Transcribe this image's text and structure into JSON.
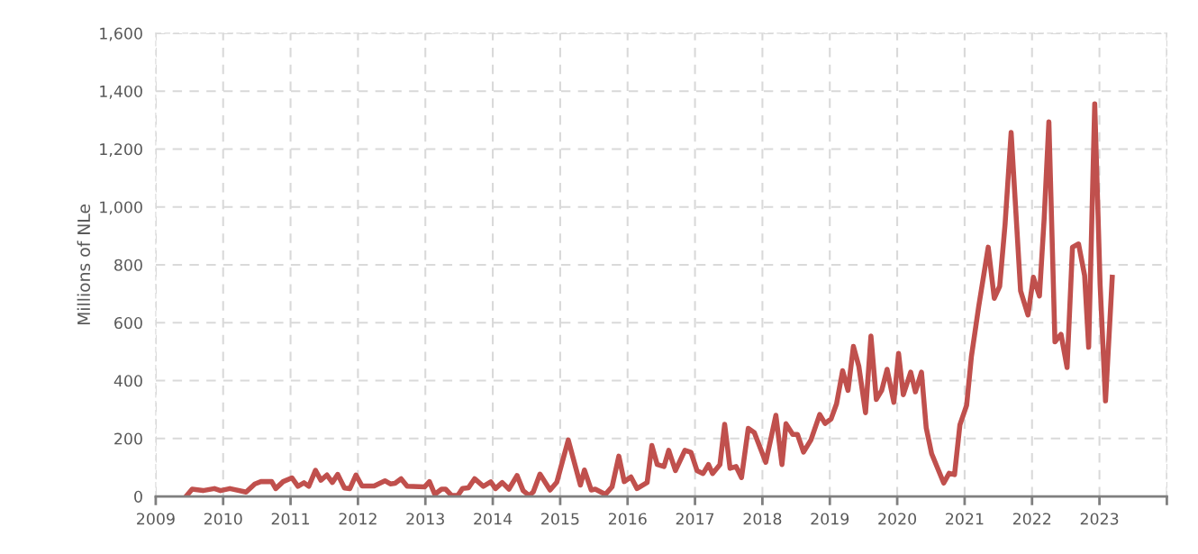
{
  "chart_data": {
    "type": "line",
    "ylabel": "Millions of NLe",
    "x": [
      2009.45,
      2009.54,
      2009.7,
      2009.87,
      2009.96,
      2010.1,
      2010.34,
      2010.47,
      2010.56,
      2010.72,
      2010.78,
      2010.89,
      2011.02,
      2011.11,
      2011.2,
      2011.27,
      2011.37,
      2011.45,
      2011.54,
      2011.62,
      2011.7,
      2011.8,
      2011.88,
      2011.97,
      2012.06,
      2012.24,
      2012.4,
      2012.48,
      2012.55,
      2012.64,
      2012.73,
      2012.99,
      2013.06,
      2013.14,
      2013.24,
      2013.3,
      2013.39,
      2013.48,
      2013.55,
      2013.64,
      2013.73,
      2013.86,
      2013.97,
      2014.04,
      2014.14,
      2014.24,
      2014.36,
      2014.45,
      2014.54,
      2014.6,
      2014.7,
      2014.85,
      2014.95,
      2015.12,
      2015.3,
      2015.36,
      2015.46,
      2015.52,
      2015.67,
      2015.77,
      2015.87,
      2015.95,
      2016.05,
      2016.14,
      2016.29,
      2016.36,
      2016.44,
      2016.54,
      2016.61,
      2016.71,
      2016.85,
      2016.94,
      2017.03,
      2017.12,
      2017.2,
      2017.26,
      2017.37,
      2017.44,
      2017.52,
      2017.61,
      2017.69,
      2017.79,
      2017.88,
      2018.05,
      2018.2,
      2018.29,
      2018.35,
      2018.45,
      2018.52,
      2018.61,
      2018.72,
      2018.85,
      2018.93,
      2019.02,
      2019.1,
      2019.19,
      2019.27,
      2019.35,
      2019.43,
      2019.53,
      2019.61,
      2019.69,
      2019.77,
      2019.85,
      2019.95,
      2020.02,
      2020.09,
      2020.2,
      2020.27,
      2020.36,
      2020.43,
      2020.51,
      2020.61,
      2020.69,
      2020.77,
      2020.85,
      2020.93,
      2021.03,
      2021.1,
      2021.21,
      2021.35,
      2021.44,
      2021.52,
      2021.6,
      2021.69,
      2021.83,
      2021.94,
      2022.02,
      2022.11,
      2022.18,
      2022.25,
      2022.34,
      2022.43,
      2022.52,
      2022.6,
      2022.69,
      2022.78,
      2022.84,
      2022.93,
      2023.01,
      2023.09,
      2023.19
    ],
    "series": [
      {
        "color": "#c0504d",
        "values": [
          0,
          25,
          20,
          27,
          20,
          27,
          15,
          43,
          51,
          51,
          27,
          51,
          64,
          35,
          47,
          35,
          90,
          56,
          74,
          48,
          76,
          29,
          27,
          74,
          36,
          36,
          54,
          43,
          45,
          61,
          35,
          33,
          51,
          7,
          25,
          25,
          3,
          3,
          27,
          30,
          61,
          35,
          50,
          27,
          48,
          25,
          72,
          20,
          3,
          15,
          77,
          22,
          49,
          195,
          39,
          91,
          22,
          25,
          7,
          33,
          139,
          51,
          67,
          27,
          48,
          176,
          110,
          103,
          159,
          89,
          159,
          152,
          89,
          79,
          110,
          79,
          110,
          249,
          97,
          103,
          65,
          235,
          220,
          118,
          280,
          110,
          251,
          214,
          214,
          153,
          195,
          283,
          252,
          268,
          320,
          434,
          366,
          518,
          450,
          289,
          554,
          335,
          366,
          439,
          325,
          494,
          351,
          429,
          361,
          429,
          237,
          148,
          91,
          46,
          80,
          75,
          247,
          315,
          482,
          658,
          861,
          684,
          726,
          940,
          1257,
          710,
          627,
          757,
          692,
          960,
          1294,
          534,
          560,
          445,
          861,
          872,
          763,
          515,
          1356,
          731,
          330,
          757
        ]
      }
    ],
    "xlim": [
      2009,
      2024
    ],
    "xticks": [
      2009,
      2010,
      2011,
      2012,
      2013,
      2014,
      2015,
      2016,
      2017,
      2018,
      2019,
      2020,
      2021,
      2022,
      2023,
      {
        "value": 2024,
        "label": null
      }
    ],
    "ylim": [
      0,
      1600
    ],
    "yticks": [
      0,
      {
        "value": 200,
        "label": "200"
      },
      {
        "value": 400,
        "label": "400"
      },
      {
        "value": 600,
        "label": "600"
      },
      {
        "value": 800,
        "label": "800"
      },
      {
        "value": 1000,
        "label": "1,000"
      },
      {
        "value": 1200,
        "label": "1,200"
      },
      {
        "value": 1400,
        "label": "1,400"
      },
      {
        "value": 1600,
        "label": "1,600"
      }
    ],
    "grid": true,
    "legend": false,
    "marker": "none",
    "line_style": "solid"
  }
}
